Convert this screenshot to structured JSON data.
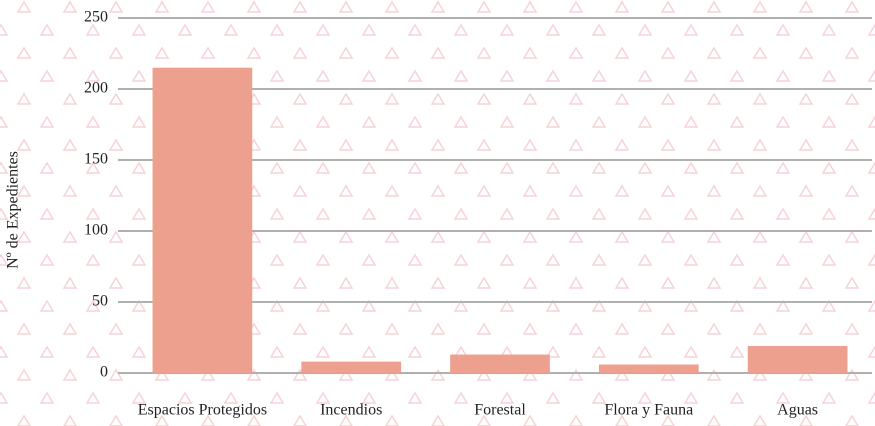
{
  "chart_data": {
    "type": "bar",
    "y_label": "Nº de Expedientes",
    "categories": [
      "Espacios Protegidos",
      "Incendios",
      "Forestal",
      "Flora y Fauna",
      "Aguas"
    ],
    "values": [
      215,
      8,
      13,
      6,
      19
    ],
    "color": "#eda08d",
    "ylim": [
      0,
      250
    ],
    "yticks": [
      0,
      50,
      100,
      150,
      200,
      250
    ],
    "grid": true
  }
}
